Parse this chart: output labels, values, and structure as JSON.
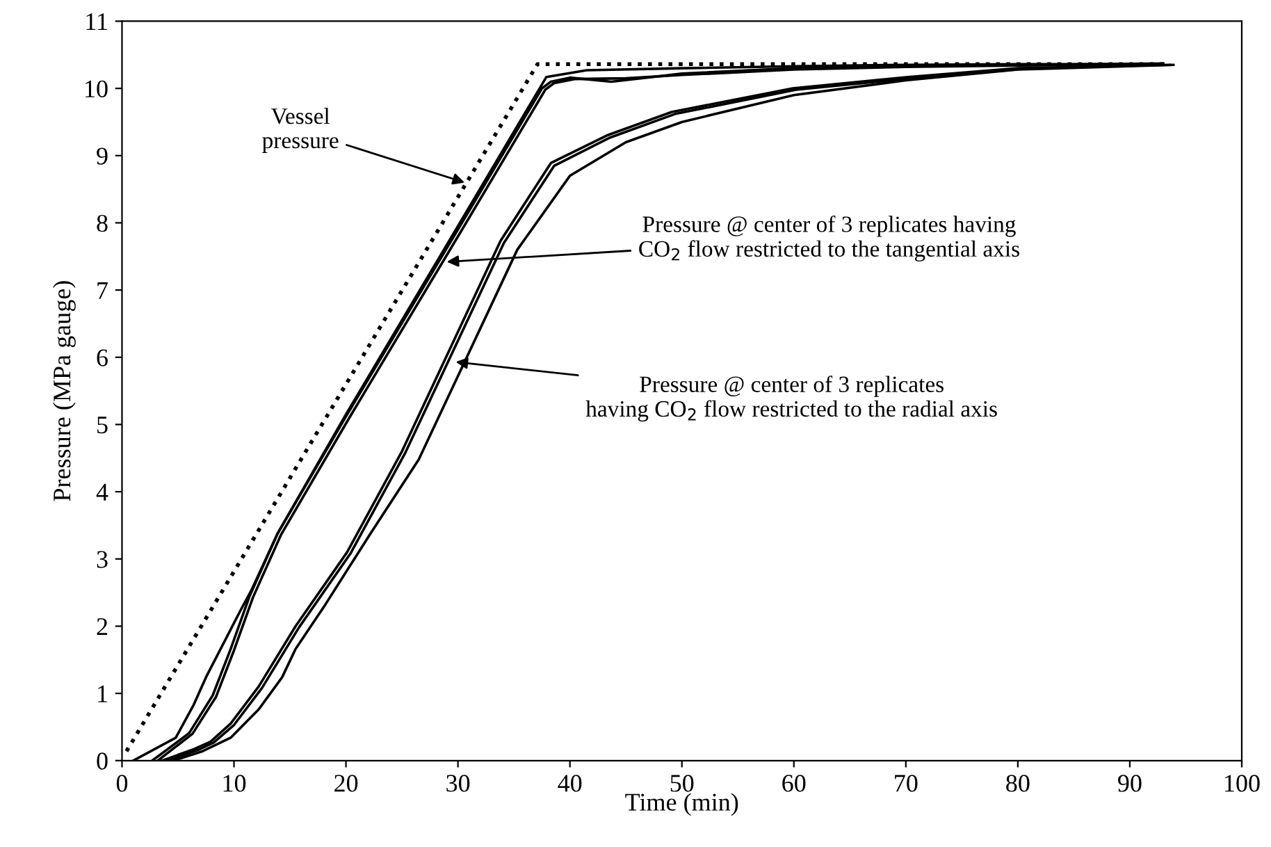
{
  "chart_data": {
    "type": "line",
    "xlabel": "Time (min)",
    "ylabel": "Pressure (MPa gauge)",
    "xlim": [
      0,
      100
    ],
    "xticks": [
      0,
      10,
      20,
      30,
      40,
      50,
      60,
      70,
      80,
      90,
      100
    ],
    "ylim": [
      0,
      11
    ],
    "yticks": [
      0,
      1,
      2,
      3,
      4,
      5,
      6,
      7,
      8,
      9,
      10,
      11
    ],
    "grid": false,
    "marker": "none",
    "series": [
      {
        "color": "#000000",
        "line_style": "dotted",
        "x": [
          0.4,
          37.1,
          93.3
        ],
        "values": [
          0.14,
          10.36,
          10.36
        ]
      },
      {
        "color": "#000000",
        "line_style": "solid",
        "x": [
          1,
          4.8,
          6.4,
          7.5,
          10.6,
          11.6,
          13.9,
          20,
          30,
          37.9,
          41.5,
          50,
          60,
          70,
          80,
          93
        ],
        "values": [
          0,
          0.34,
          0.83,
          1.24,
          2.24,
          2.55,
          3.38,
          5.15,
          7.95,
          10.17,
          10.27,
          10.3,
          10.33,
          10.35,
          10.36,
          10.36
        ]
      },
      {
        "color": "#000000",
        "line_style": "solid",
        "x": [
          2.7,
          6,
          8.1,
          9.7,
          11.4,
          13.9,
          20,
          30,
          37.5,
          38.3,
          40,
          43.7,
          50,
          60,
          70,
          80,
          93
        ],
        "values": [
          0,
          0.41,
          0.97,
          1.66,
          2.45,
          3.38,
          5.12,
          7.9,
          10.0,
          10.1,
          10.16,
          10.1,
          10.22,
          10.3,
          10.33,
          10.35,
          10.37
        ]
      },
      {
        "color": "#000000",
        "line_style": "solid",
        "x": [
          3.2,
          6.3,
          8.4,
          10,
          11.7,
          14.2,
          20.3,
          30.3,
          37.8,
          38.6,
          40.5,
          45,
          50,
          60,
          70,
          80,
          92.6
        ],
        "values": [
          0,
          0.4,
          0.95,
          1.64,
          2.43,
          3.36,
          5.1,
          7.88,
          9.98,
          10.08,
          10.14,
          10.15,
          10.2,
          10.28,
          10.32,
          10.34,
          10.36
        ]
      },
      {
        "color": "#000000",
        "line_style": "solid",
        "x": [
          3.6,
          6.4,
          7.9,
          9.7,
          12.2,
          15.5,
          20.1,
          25,
          33.8,
          38.3,
          43.3,
          49.1,
          59.9,
          70.2,
          80,
          93.6
        ],
        "values": [
          0,
          0.17,
          0.28,
          0.55,
          1.1,
          2.0,
          3.1,
          4.6,
          7.73,
          8.89,
          9.3,
          9.65,
          10.0,
          10.17,
          10.3,
          10.35
        ]
      },
      {
        "color": "#000000",
        "line_style": "solid",
        "x": [
          4.1,
          6.8,
          8.2,
          10,
          12.5,
          15.8,
          20.4,
          25.3,
          34.1,
          38.6,
          43.6,
          49.4,
          60.2,
          70.5,
          80.3,
          92.3
        ],
        "values": [
          0,
          0.16,
          0.27,
          0.53,
          1.08,
          1.98,
          3.08,
          4.58,
          7.7,
          8.85,
          9.27,
          9.62,
          9.98,
          10.15,
          10.29,
          10.35
        ]
      },
      {
        "color": "#000000",
        "line_style": "solid",
        "x": [
          4.6,
          7.2,
          9.7,
          12.2,
          14.3,
          15.5,
          18,
          22.2,
          26.5,
          35.3,
          40,
          45,
          50,
          60,
          70,
          80,
          93.9
        ],
        "values": [
          0,
          0.14,
          0.34,
          0.76,
          1.24,
          1.66,
          2.28,
          3.38,
          4.48,
          7.6,
          8.7,
          9.2,
          9.5,
          9.9,
          10.12,
          10.28,
          10.35
        ]
      }
    ],
    "annotations": [
      {
        "text": "Vessel\npressure",
        "x": 30.6,
        "y": 8.6
      },
      {
        "text": "Pressure @ center of 3 replicates having\nCO$_{2}$ flow restricted to the tangential axis",
        "x": 29,
        "y": 7.42
      },
      {
        "text": "Pressure @ center of 3 replicates\nhaving CO$_{2}$ flow restricted to the radial axis",
        "x": 29.8,
        "y": 5.93
      }
    ]
  }
}
